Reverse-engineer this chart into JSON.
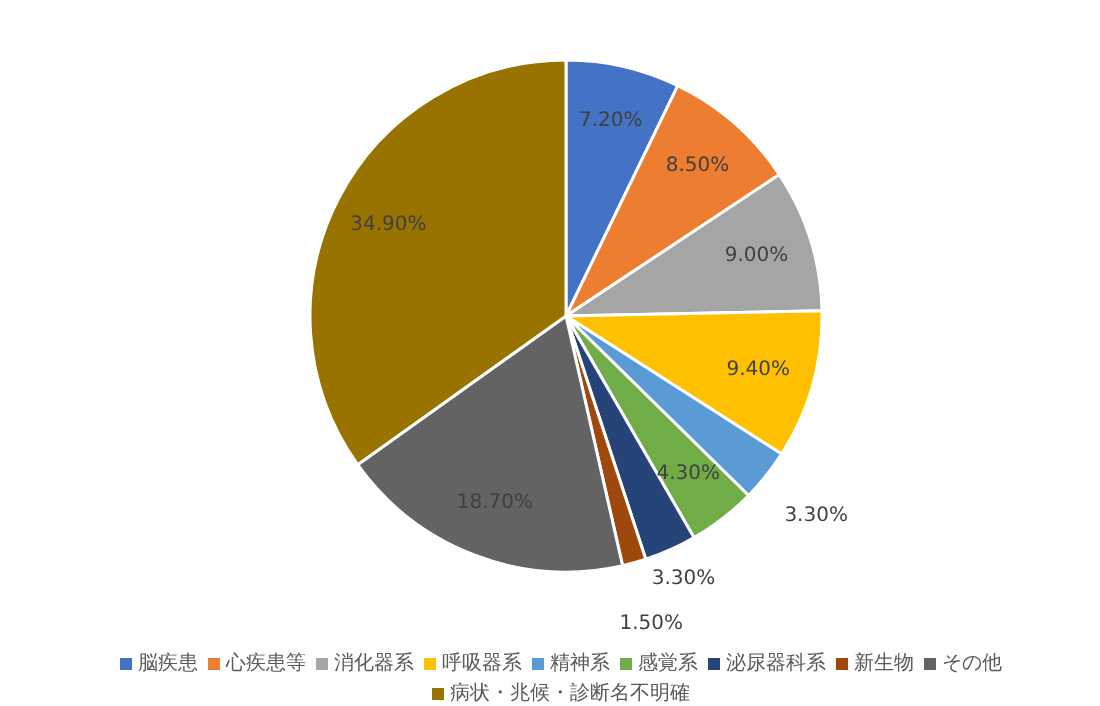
{
  "chart_data": {
    "type": "pie",
    "categories": [
      "脳疾患",
      "心疾患等",
      "消化器系",
      "呼吸器系",
      "精神系",
      "感覚系",
      "泌尿器科系",
      "新生物",
      "その他",
      "病状・兆候・診断名不明確"
    ],
    "values": [
      7.2,
      8.5,
      9.0,
      9.4,
      3.3,
      4.3,
      3.3,
      1.5,
      18.7,
      34.9
    ],
    "value_labels": [
      "7.20%",
      "8.50%",
      "9.00%",
      "9.40%",
      "3.30%",
      "4.30%",
      "3.30%",
      "1.50%",
      "18.70%",
      "34.90%"
    ],
    "colors": [
      "#4472c4",
      "#ed7d31",
      "#a5a5a5",
      "#ffc000",
      "#5b9bd5",
      "#70ad47",
      "#264478",
      "#9e480e",
      "#636363",
      "#997300"
    ],
    "legend": "bottom"
  }
}
